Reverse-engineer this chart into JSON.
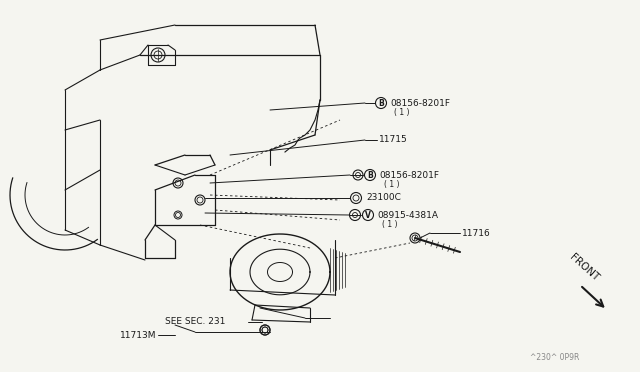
{
  "bg_color": "#f5f5f0",
  "line_color": "#1a1a1a",
  "gray_color": "#555555",
  "light_gray": "#888888",
  "font_size_tiny": 5.5,
  "font_size_small": 6.5,
  "font_size_med": 7.5,
  "watermark": "^230^ 0P9R",
  "label_b1": "B",
  "label_b1_part": "08156-8201F",
  "label_b1_sub": "( 1 )",
  "label_11715": "11715",
  "label_b2": "B",
  "label_b2_part": "08156-8201F",
  "label_b2_sub": "( 1 )",
  "label_23100c": "23100C",
  "label_v": "V",
  "label_v_part": "08915-4381A",
  "label_v_sub": "( 1 )",
  "label_11716": "11716",
  "label_11713m": "11713M",
  "label_see_sec": "SEE SEC. 231",
  "label_front": "FRONT"
}
